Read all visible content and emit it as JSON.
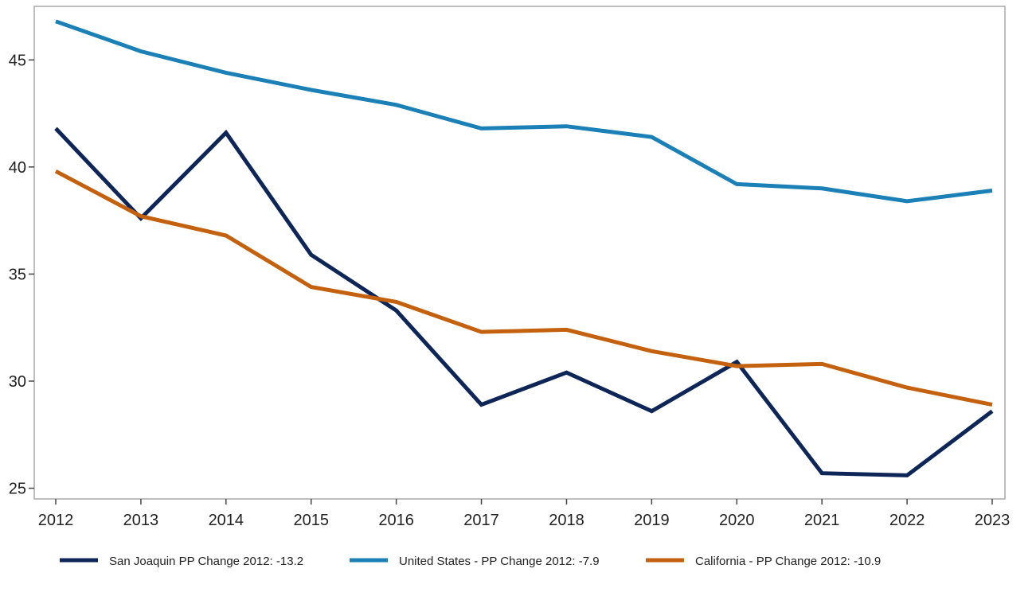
{
  "chart_data": {
    "type": "line",
    "title": "",
    "xlabel": "",
    "ylabel": "",
    "x": [
      2012,
      2013,
      2014,
      2015,
      2016,
      2017,
      2018,
      2019,
      2020,
      2021,
      2022,
      2023
    ],
    "xlim": [
      2012,
      2023
    ],
    "ylim": [
      24.5,
      47.5
    ],
    "yticks": [
      25,
      30,
      35,
      40,
      45
    ],
    "grid": false,
    "legend_position": "bottom",
    "series": [
      {
        "name": "San Joaquin PP Change 2012: -13.2",
        "color": "#0d2557",
        "values": [
          41.8,
          37.6,
          41.6,
          35.9,
          33.3,
          28.9,
          30.4,
          28.6,
          30.9,
          25.7,
          25.6,
          28.6
        ]
      },
      {
        "name": "United States - PP Change 2012: -7.9",
        "color": "#1a80b6",
        "values": [
          46.8,
          45.4,
          44.4,
          43.6,
          42.9,
          41.8,
          41.9,
          41.4,
          39.2,
          39.0,
          38.4,
          38.9
        ]
      },
      {
        "name": "California - PP Change 2012: -10.9",
        "color": "#c4610f",
        "values": [
          39.8,
          37.7,
          36.8,
          34.4,
          33.7,
          32.3,
          32.4,
          31.4,
          30.7,
          30.8,
          29.7,
          28.9
        ]
      }
    ]
  }
}
